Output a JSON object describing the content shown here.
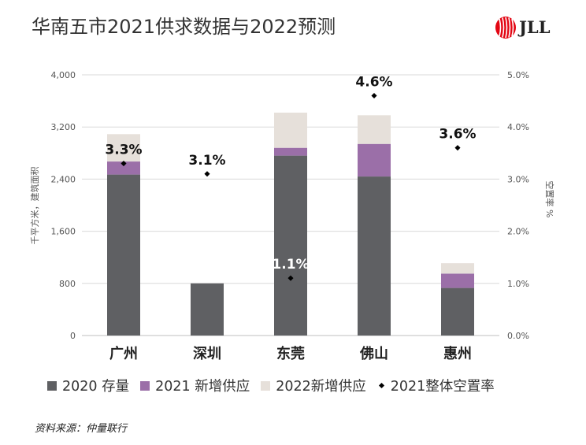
{
  "title": "华南五市2021供求数据与2022预测",
  "brand": {
    "name": "JLL",
    "color": "#e30613"
  },
  "source": "资料来源：仲量联行",
  "colors": {
    "stock": "#5f6063",
    "new2021": "#9b6fa8",
    "new2022": "#e6e0da",
    "vacancy": "#000000",
    "grid": "#d9d9d9"
  },
  "chart_data": {
    "type": "bar",
    "stacked": true,
    "categories": [
      "广州",
      "深圳",
      "东莞",
      "佛山",
      "惠州"
    ],
    "series": [
      {
        "name": "2020 存量",
        "values": [
          2470,
          800,
          2760,
          2440,
          730
        ],
        "color": "#5f6063"
      },
      {
        "name": "2021 新增供应",
        "values": [
          200,
          0,
          120,
          500,
          220
        ],
        "color": "#9b6fa8"
      },
      {
        "name": "2022新增供应",
        "values": [
          420,
          0,
          540,
          440,
          160
        ],
        "color": "#e6e0da"
      }
    ],
    "line_series": {
      "name": "2021整体空置率",
      "axis": "right",
      "values": [
        3.3,
        3.1,
        1.1,
        4.6,
        3.6
      ],
      "labels": [
        "3.3%",
        "3.1%",
        "1.1%",
        "4.6%",
        "3.6%"
      ],
      "marker": "diamond"
    },
    "ylabel": "千平方米，建筑面积",
    "y2label": "空置率 %",
    "ylim": [
      0,
      4000
    ],
    "y2lim": [
      0,
      5
    ],
    "yticks": [
      0,
      800,
      1600,
      2400,
      3200,
      4000
    ],
    "yticklabels": [
      "0",
      "800",
      "1,600",
      "2,400",
      "3,200",
      "4,000"
    ],
    "y2ticks": [
      0,
      1,
      2,
      3,
      4,
      5
    ],
    "y2ticklabels": [
      "0.0%",
      "1.0%",
      "2.0%",
      "3.0%",
      "4.0%",
      "5.0%"
    ],
    "grid": true,
    "legend_position": "bottom"
  }
}
